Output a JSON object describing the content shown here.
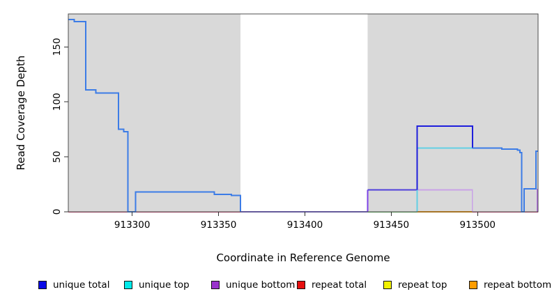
{
  "chart_data": {
    "type": "line",
    "title": "",
    "xlabel": "Coordinate in Reference Genome",
    "ylabel": "Read Coverage Depth",
    "xlim": [
      913263,
      913535
    ],
    "ylim": [
      0,
      180
    ],
    "xticks": [
      913300,
      913350,
      913400,
      913450,
      913500
    ],
    "yticks": [
      0,
      50,
      100,
      150
    ],
    "grid": false,
    "background_color": "#ffffff",
    "shaded_color": "#d9d9d9",
    "shaded_regions": [
      [
        913263,
        913362.7
      ],
      [
        913436.3,
        913535
      ]
    ],
    "series": [
      {
        "name": "repeat total baseline left",
        "color": "#cc3a6a",
        "width": 1.5,
        "points": [
          [
            913263,
            0
          ],
          [
            913362.7,
            0
          ]
        ]
      },
      {
        "name": "repeat total baseline right",
        "color": "#cc3a6a",
        "width": 1.5,
        "points": [
          [
            913497,
            0
          ],
          [
            913535,
            0
          ]
        ]
      },
      {
        "name": "gap baseline all series zero",
        "color": "#7c68e8",
        "width": 2,
        "points": [
          [
            913362.7,
            0
          ],
          [
            913436.3,
            0
          ]
        ]
      },
      {
        "name": "unique top baseline green",
        "color": "#58b558",
        "width": 1.5,
        "points": [
          [
            913436.3,
            0
          ],
          [
            913465,
            0
          ]
        ]
      },
      {
        "name": "repeat bottom baseline",
        "color": "#ff9d00",
        "width": 2.4,
        "points": [
          [
            913465,
            0
          ],
          [
            913497,
            0
          ]
        ]
      },
      {
        "name": "unique bottom rise",
        "color": "#7c42e6",
        "width": 2,
        "points": [
          [
            913436.3,
            0
          ],
          [
            913436.3,
            20
          ]
        ]
      },
      {
        "name": "unique total 20 plateau",
        "color": "#5040dc",
        "width": 2.2,
        "points": [
          [
            913436.3,
            20
          ],
          [
            913465,
            20
          ]
        ]
      },
      {
        "name": "unique bottom block",
        "color": "#c9a2e8",
        "width": 1.8,
        "points": [
          [
            913465,
            20
          ],
          [
            913497,
            20
          ],
          [
            913497,
            0
          ]
        ]
      },
      {
        "name": "unique top block",
        "color": "#62cfe4",
        "width": 1.8,
        "points": [
          [
            913465,
            0
          ],
          [
            913465,
            58
          ],
          [
            913497,
            58
          ]
        ]
      },
      {
        "name": "unique total block",
        "color": "#1e1edc",
        "width": 2,
        "points": [
          [
            913465,
            20
          ],
          [
            913465,
            78
          ],
          [
            913497,
            78
          ],
          [
            913497,
            58
          ]
        ]
      },
      {
        "name": "coverage left",
        "color": "#3c7ce6",
        "width": 2,
        "points": [
          [
            913263,
            175
          ],
          [
            913266.5,
            175
          ],
          [
            913266.5,
            173
          ],
          [
            913273,
            173
          ],
          [
            913273,
            111
          ],
          [
            913279,
            111
          ],
          [
            913279,
            108
          ],
          [
            913292,
            108
          ],
          [
            913292,
            75
          ],
          [
            913295,
            75
          ],
          [
            913295,
            73
          ],
          [
            913297.5,
            73
          ],
          [
            913297.5,
            0
          ],
          [
            913302,
            0
          ],
          [
            913302,
            18
          ],
          [
            913347.5,
            18
          ],
          [
            913347.5,
            16
          ],
          [
            913357.5,
            16
          ],
          [
            913357.5,
            15
          ],
          [
            913362.7,
            15
          ],
          [
            913362.7,
            0
          ]
        ]
      },
      {
        "name": "coverage right",
        "color": "#3c7ce6",
        "width": 2,
        "points": [
          [
            913497,
            58
          ],
          [
            913514,
            58
          ],
          [
            913514,
            57
          ],
          [
            913523,
            57
          ],
          [
            913523,
            56
          ],
          [
            913524.5,
            56
          ],
          [
            913524.5,
            54
          ],
          [
            913525.5,
            54
          ],
          [
            913525.5,
            0
          ],
          [
            913527,
            0
          ],
          [
            913527,
            21
          ],
          [
            913533.8,
            21
          ],
          [
            913533.8,
            55
          ],
          [
            913535,
            55
          ]
        ]
      },
      {
        "name": "unique bottom edge rise",
        "color": "#b173de",
        "width": 1.8,
        "points": [
          [
            913534.6,
            0
          ],
          [
            913534.6,
            21
          ]
        ]
      }
    ],
    "legend": {
      "position": "bottom",
      "items": [
        {
          "label": "unique total",
          "color": "#0a0ae6"
        },
        {
          "label": "unique top",
          "color": "#00eaea"
        },
        {
          "label": "unique bottom",
          "color": "#9932cc"
        },
        {
          "label": "repeat total",
          "color": "#e60f0f"
        },
        {
          "label": "repeat top",
          "color": "#f2f200"
        },
        {
          "label": "repeat bottom",
          "color": "#ff9d00"
        }
      ]
    }
  }
}
